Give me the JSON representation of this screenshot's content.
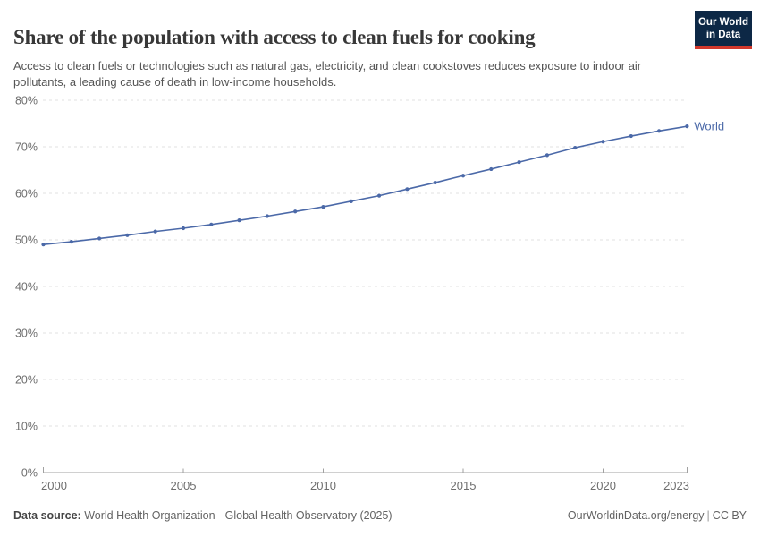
{
  "header": {
    "title": "Share of the population with access to clean fuels for cooking",
    "subtitle": "Access to clean fuels or technologies such as natural gas, electricity, and clean cookstoves reduces exposure to indoor air pollutants, a leading cause of death in low-income households.",
    "logo": {
      "line1": "Our World",
      "line2": "in Data",
      "bg_color": "#0d2846",
      "stripe_color": "#d2382c"
    }
  },
  "chart_data": {
    "type": "line",
    "title": "Share of the population with access to clean fuels for cooking",
    "xlabel": "",
    "ylabel": "",
    "xlim": [
      2000,
      2023
    ],
    "ylim": [
      0,
      80
    ],
    "grid": "horizontal-dashed",
    "y_ticks": [
      0,
      10,
      20,
      30,
      40,
      50,
      60,
      70,
      80
    ],
    "y_tick_suffix": "%",
    "x_ticks": [
      2000,
      2005,
      2010,
      2015,
      2020,
      2023
    ],
    "x": [
      2000,
      2001,
      2002,
      2003,
      2004,
      2005,
      2006,
      2007,
      2008,
      2009,
      2010,
      2011,
      2012,
      2013,
      2014,
      2015,
      2016,
      2017,
      2018,
      2019,
      2020,
      2021,
      2022,
      2023
    ],
    "series": [
      {
        "name": "World",
        "color": "#4b69a8",
        "values": [
          49.0,
          49.6,
          50.3,
          51.0,
          51.8,
          52.5,
          53.3,
          54.2,
          55.1,
          56.1,
          57.1,
          58.3,
          59.5,
          60.9,
          62.3,
          63.8,
          65.2,
          66.7,
          68.2,
          69.8,
          71.1,
          72.3,
          73.4,
          74.4
        ]
      }
    ],
    "end_label": "World",
    "legend_position": "end-of-line",
    "grid_color": "#e0e0e0",
    "axis_color": "#a1a1a1",
    "tick_label_color": "#6e6e6e"
  },
  "footer": {
    "datasource_label": "Data source:",
    "datasource_value": " World Health Organization - Global Health Observatory (2025)",
    "url_text": "OurWorldinData.org/energy",
    "separator": "|",
    "license_text": "CC BY"
  }
}
